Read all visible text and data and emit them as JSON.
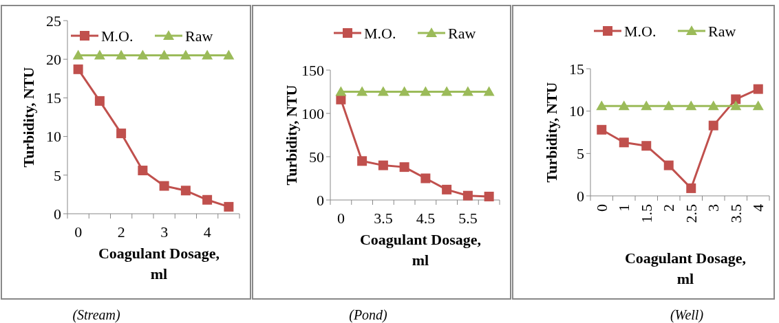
{
  "chart_data": [
    {
      "type": "line",
      "xlabel": "Coagulant Dosage, ml",
      "ylabel": "Turbidity, NTU",
      "categories": [
        "0",
        null,
        "2",
        null,
        "3",
        null,
        "4",
        null
      ],
      "ylim": [
        0,
        25
      ],
      "yticks": [
        0,
        5,
        10,
        15,
        20,
        25
      ],
      "legend": "top",
      "annotations": [
        "(Stream)"
      ],
      "series": [
        {
          "name": "M.O.",
          "color": "#c0504d",
          "marker": "square",
          "values": [
            18.7,
            14.6,
            10.4,
            5.6,
            3.6,
            3.0,
            1.8,
            0.9
          ]
        },
        {
          "name": "Raw",
          "color": "#9bbb59",
          "marker": "triangle",
          "values": [
            20.5,
            20.5,
            20.5,
            20.5,
            20.5,
            20.5,
            20.5,
            20.5
          ]
        }
      ]
    },
    {
      "type": "line",
      "xlabel": "Coagulant Dosage, ml",
      "ylabel": "Turbidity, NTU",
      "categories": [
        "0",
        null,
        "3.5",
        null,
        "4.5",
        null,
        "5.5",
        null
      ],
      "ylim": [
        0,
        150
      ],
      "yticks": [
        0,
        50,
        100,
        150
      ],
      "legend": "top",
      "annotations": [
        "(Pond)"
      ],
      "series": [
        {
          "name": "M.O.",
          "color": "#c0504d",
          "marker": "square",
          "values": [
            116,
            45,
            40,
            38,
            25,
            12,
            5,
            4
          ]
        },
        {
          "name": "Raw",
          "color": "#9bbb59",
          "marker": "triangle",
          "values": [
            125,
            125,
            125,
            125,
            125,
            125,
            125,
            125
          ]
        }
      ]
    },
    {
      "type": "line",
      "xlabel": "Coagulant Dosage, ml",
      "ylabel": "Turbidity, NTU",
      "categories": [
        "0",
        "1",
        "1.5",
        "2",
        "2.5",
        "3",
        "3.5",
        "4"
      ],
      "ylim": [
        0,
        15
      ],
      "yticks": [
        0,
        5,
        10,
        15
      ],
      "legend": "top",
      "annotations": [
        "(Well)"
      ],
      "series": [
        {
          "name": "M.O.",
          "color": "#c0504d",
          "marker": "square",
          "values": [
            7.8,
            6.3,
            5.9,
            3.6,
            0.9,
            8.3,
            11.4,
            12.6
          ]
        },
        {
          "name": "Raw",
          "color": "#9bbb59",
          "marker": "triangle",
          "values": [
            10.6,
            10.6,
            10.6,
            10.6,
            10.6,
            10.6,
            10.6,
            10.6
          ]
        }
      ]
    }
  ]
}
